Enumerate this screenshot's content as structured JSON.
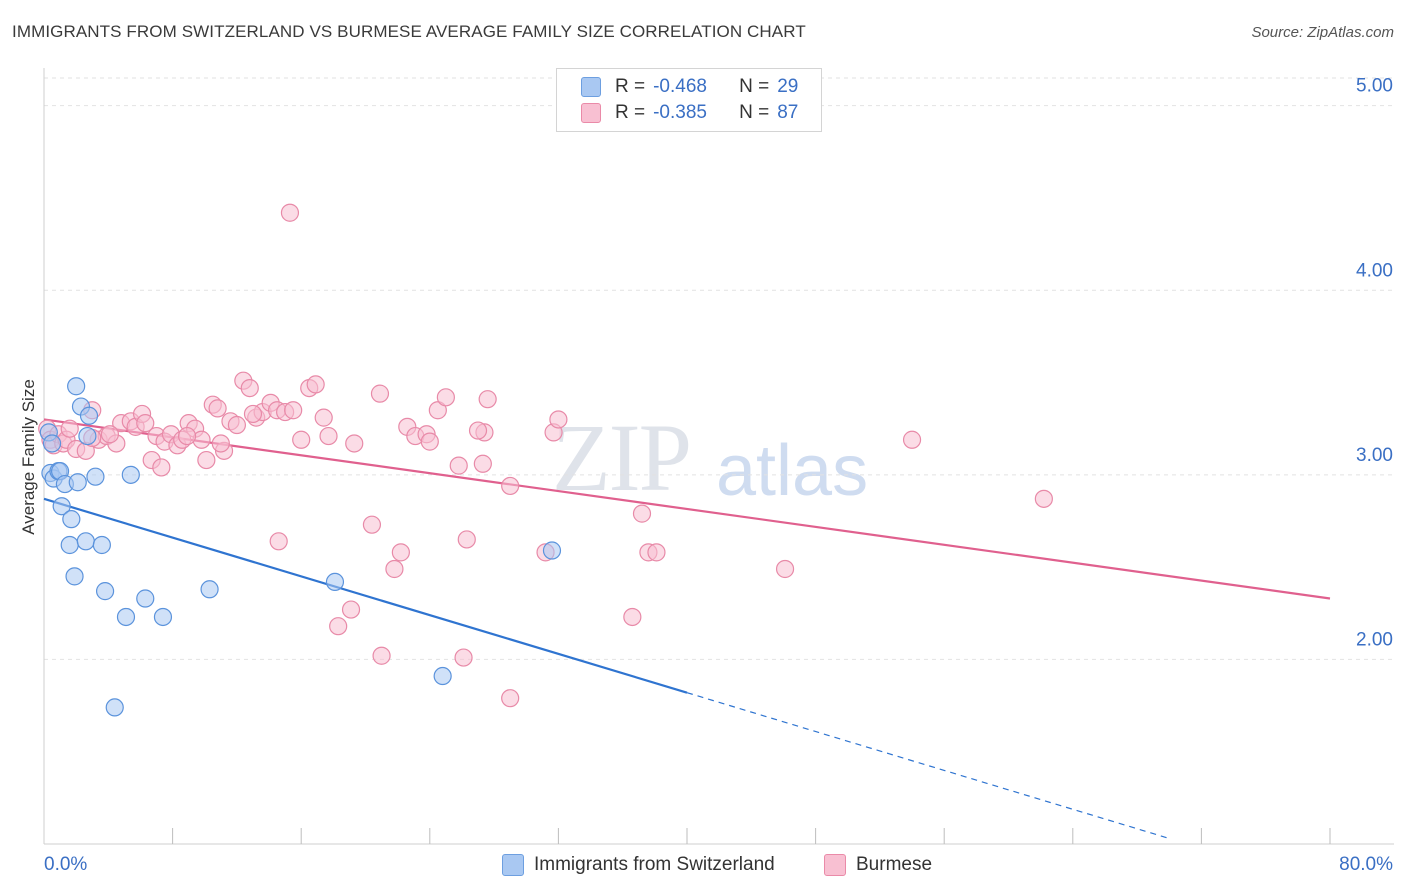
{
  "header": {
    "title": "IMMIGRANTS FROM SWITZERLAND VS BURMESE AVERAGE FAMILY SIZE CORRELATION CHART",
    "source": "Source: ZipAtlas.com"
  },
  "watermark": {
    "part1": "ZIP",
    "part2": "atlas"
  },
  "legend": {
    "rows": [
      {
        "r_label": "R =",
        "r_value": "-0.468",
        "n_label": "N =",
        "n_value": "29",
        "color": "#a9c8f2",
        "border": "#6d9fe0"
      },
      {
        "r_label": "R =",
        "r_value": "-0.385",
        "n_label": "N =",
        "n_value": "87",
        "color": "#f8c0d2",
        "border": "#ea8aa8"
      }
    ]
  },
  "bottom_legend": {
    "series1": "Immigrants from Switzerland",
    "series2": "Burmese"
  },
  "colors": {
    "blue_fill": "#a9c8f2",
    "blue_stroke": "#5b93dc",
    "blue_line": "#2f74d0",
    "pink_fill": "#f8c0d2",
    "pink_stroke": "#e88aa8",
    "pink_line": "#e0608e",
    "axis_text": "#3a6fc4",
    "grid": "#e2e2e2"
  },
  "chart_data": {
    "type": "scatter",
    "title": "IMMIGRANTS FROM SWITZERLAND VS BURMESE AVERAGE FAMILY SIZE CORRELATION CHART",
    "xlabel": "",
    "ylabel": "Average Family Size",
    "xlim": [
      0,
      80
    ],
    "ylim": [
      1.0,
      5.15
    ],
    "x_tick_labels": [
      "0.0%",
      "80.0%"
    ],
    "y_ticks": [
      2.0,
      3.0,
      4.0,
      5.0
    ],
    "y_tick_labels": [
      "2.00",
      "3.00",
      "4.00",
      "5.00"
    ],
    "grid": true,
    "series": [
      {
        "name": "Immigrants from Switzerland",
        "R": -0.468,
        "N": 29,
        "trend": {
          "x_start": 0,
          "y_start": 2.87,
          "x_solid_end": 40,
          "y_solid_end": 1.82,
          "x_dash_end": 70,
          "y_dash_end": 1.03
        },
        "points": [
          [
            0.3,
            3.23
          ],
          [
            0.5,
            3.17
          ],
          [
            0.4,
            3.01
          ],
          [
            0.6,
            2.98
          ],
          [
            0.9,
            3.02
          ],
          [
            1.0,
            3.02
          ],
          [
            1.3,
            2.95
          ],
          [
            1.1,
            2.83
          ],
          [
            2.1,
            2.96
          ],
          [
            3.2,
            2.99
          ],
          [
            2.0,
            3.48
          ],
          [
            2.3,
            3.37
          ],
          [
            2.7,
            3.21
          ],
          [
            2.8,
            3.32
          ],
          [
            1.7,
            2.76
          ],
          [
            1.6,
            2.62
          ],
          [
            2.6,
            2.64
          ],
          [
            3.6,
            2.62
          ],
          [
            1.9,
            2.45
          ],
          [
            3.8,
            2.37
          ],
          [
            6.3,
            2.33
          ],
          [
            10.3,
            2.38
          ],
          [
            5.1,
            2.23
          ],
          [
            7.4,
            2.23
          ],
          [
            4.4,
            1.74
          ],
          [
            18.1,
            2.42
          ],
          [
            24.8,
            1.91
          ],
          [
            31.6,
            2.59
          ],
          [
            5.4,
            3.0
          ]
        ]
      },
      {
        "name": "Burmese",
        "R": -0.385,
        "N": 87,
        "trend": {
          "x_start": 0,
          "y_start": 3.3,
          "x_end": 80,
          "y_end": 2.33
        },
        "points": [
          [
            0.2,
            3.25
          ],
          [
            0.4,
            3.19
          ],
          [
            0.6,
            3.16
          ],
          [
            0.9,
            3.22
          ],
          [
            1.2,
            3.17
          ],
          [
            1.4,
            3.19
          ],
          [
            1.6,
            3.25
          ],
          [
            2.0,
            3.14
          ],
          [
            2.6,
            3.13
          ],
          [
            3.0,
            3.35
          ],
          [
            3.4,
            3.19
          ],
          [
            3.9,
            3.21
          ],
          [
            4.5,
            3.17
          ],
          [
            4.8,
            3.28
          ],
          [
            5.4,
            3.29
          ],
          [
            5.7,
            3.26
          ],
          [
            6.1,
            3.33
          ],
          [
            6.3,
            3.28
          ],
          [
            6.7,
            3.08
          ],
          [
            7.0,
            3.21
          ],
          [
            7.5,
            3.18
          ],
          [
            7.9,
            3.22
          ],
          [
            8.3,
            3.16
          ],
          [
            8.6,
            3.19
          ],
          [
            9.0,
            3.28
          ],
          [
            9.4,
            3.25
          ],
          [
            9.8,
            3.19
          ],
          [
            10.1,
            3.08
          ],
          [
            10.5,
            3.38
          ],
          [
            10.8,
            3.36
          ],
          [
            11.2,
            3.13
          ],
          [
            11.6,
            3.29
          ],
          [
            12.0,
            3.27
          ],
          [
            12.4,
            3.51
          ],
          [
            12.8,
            3.47
          ],
          [
            13.2,
            3.31
          ],
          [
            13.6,
            3.34
          ],
          [
            14.1,
            3.39
          ],
          [
            14.5,
            3.35
          ],
          [
            15.0,
            3.34
          ],
          [
            15.5,
            3.35
          ],
          [
            16.0,
            3.19
          ],
          [
            16.5,
            3.47
          ],
          [
            16.9,
            3.49
          ],
          [
            17.4,
            3.31
          ],
          [
            17.7,
            3.21
          ],
          [
            19.3,
            3.17
          ],
          [
            20.9,
            3.44
          ],
          [
            22.6,
            3.26
          ],
          [
            23.1,
            3.21
          ],
          [
            23.8,
            3.22
          ],
          [
            24.5,
            3.35
          ],
          [
            25.0,
            3.42
          ],
          [
            25.8,
            3.05
          ],
          [
            27.3,
            3.06
          ],
          [
            27.6,
            3.41
          ],
          [
            27.4,
            3.23
          ],
          [
            29.0,
            2.94
          ],
          [
            31.7,
            3.23
          ],
          [
            32.0,
            3.3
          ],
          [
            15.3,
            4.42
          ],
          [
            14.6,
            2.64
          ],
          [
            20.4,
            2.73
          ],
          [
            22.2,
            2.58
          ],
          [
            21.8,
            2.49
          ],
          [
            26.3,
            2.65
          ],
          [
            31.2,
            2.58
          ],
          [
            37.2,
            2.79
          ],
          [
            37.6,
            2.58
          ],
          [
            38.1,
            2.58
          ],
          [
            46.1,
            2.49
          ],
          [
            36.6,
            2.23
          ],
          [
            19.1,
            2.27
          ],
          [
            18.3,
            2.18
          ],
          [
            21.0,
            2.02
          ],
          [
            26.1,
            2.01
          ],
          [
            29.0,
            1.79
          ],
          [
            54.0,
            3.19
          ],
          [
            62.2,
            2.87
          ],
          [
            7.3,
            3.04
          ],
          [
            3.0,
            3.2
          ],
          [
            4.1,
            3.22
          ],
          [
            8.9,
            3.21
          ],
          [
            11.0,
            3.17
          ],
          [
            13.0,
            3.33
          ],
          [
            24.0,
            3.18
          ],
          [
            27.0,
            3.24
          ]
        ]
      }
    ]
  }
}
